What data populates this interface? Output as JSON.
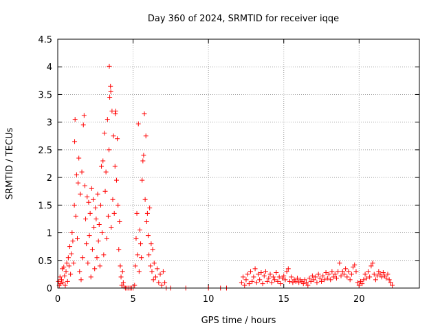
{
  "chart_data": {
    "type": "scatter",
    "title": "Day 360 of 2024, SRMTID for receiver iqqe",
    "xlabel": "GPS time / hours",
    "ylabel": "SRMTID / TECUs",
    "xlim": [
      0,
      24
    ],
    "ylim": [
      0,
      4.5
    ],
    "xticks": [
      0,
      5,
      10,
      15,
      20
    ],
    "xtick_labels": [
      "0",
      "5",
      "10",
      "15",
      "20"
    ],
    "yticks": [
      0,
      0.5,
      1,
      1.5,
      2,
      2.5,
      3,
      3.5,
      4,
      4.5
    ],
    "ytick_labels": [
      "0",
      "0.5",
      "1",
      "1.5",
      "2",
      "2.5",
      "3",
      "3.5",
      "4",
      "4.5"
    ],
    "grid": true,
    "marker": "plus",
    "color": "#ff0000",
    "series": [
      {
        "name": "SRMTID",
        "points": [
          [
            0.05,
            0.12
          ],
          [
            0.1,
            0.05
          ],
          [
            0.15,
            0.2
          ],
          [
            0.2,
            0.08
          ],
          [
            0.25,
            0.15
          ],
          [
            0.3,
            0.35
          ],
          [
            0.35,
            0.1
          ],
          [
            0.4,
            0.38
          ],
          [
            0.45,
            0.22
          ],
          [
            0.5,
            0.05
          ],
          [
            0.55,
            0.3
          ],
          [
            0.6,
            0.45
          ],
          [
            0.65,
            0.12
          ],
          [
            0.7,
            0.55
          ],
          [
            0.75,
            0.4
          ],
          [
            0.8,
            0.75
          ],
          [
            0.85,
            0.25
          ],
          [
            0.9,
            0.62
          ],
          [
            0.95,
            1.0
          ],
          [
            1.0,
            0.85
          ],
          [
            1.05,
            0.45
          ],
          [
            1.1,
            1.5
          ],
          [
            1.12,
            2.65
          ],
          [
            1.15,
            3.05
          ],
          [
            1.2,
            1.3
          ],
          [
            1.25,
            2.05
          ],
          [
            1.3,
            0.9
          ],
          [
            1.35,
            1.9
          ],
          [
            1.4,
            2.35
          ],
          [
            1.45,
            0.3
          ],
          [
            1.5,
            1.7
          ],
          [
            1.55,
            0.15
          ],
          [
            1.6,
            2.1
          ],
          [
            1.65,
            0.55
          ],
          [
            1.7,
            2.95
          ],
          [
            1.75,
            3.12
          ],
          [
            1.8,
            1.85
          ],
          [
            1.85,
            1.25
          ],
          [
            1.9,
            0.8
          ],
          [
            1.95,
            1.65
          ],
          [
            2.0,
            0.45
          ],
          [
            2.05,
            1.55
          ],
          [
            2.1,
            0.95
          ],
          [
            2.15,
            1.35
          ],
          [
            2.2,
            0.2
          ],
          [
            2.25,
            1.8
          ],
          [
            2.3,
            0.7
          ],
          [
            2.35,
            1.6
          ],
          [
            2.4,
            1.1
          ],
          [
            2.45,
            0.35
          ],
          [
            2.5,
            1.45
          ],
          [
            2.55,
            1.25
          ],
          [
            2.6,
            0.55
          ],
          [
            2.65,
            1.7
          ],
          [
            2.7,
            0.85
          ],
          [
            2.75,
            1.15
          ],
          [
            2.8,
            0.4
          ],
          [
            2.85,
            1.5
          ],
          [
            2.9,
            2.2
          ],
          [
            2.95,
            1.0
          ],
          [
            3.0,
            2.3
          ],
          [
            3.05,
            0.6
          ],
          [
            3.1,
            2.8
          ],
          [
            3.15,
            1.75
          ],
          [
            3.2,
            2.1
          ],
          [
            3.25,
            0.9
          ],
          [
            3.3,
            3.05
          ],
          [
            3.35,
            1.3
          ],
          [
            3.4,
            2.5
          ],
          [
            3.42,
            4.01
          ],
          [
            3.45,
            3.45
          ],
          [
            3.5,
            3.65
          ],
          [
            3.52,
            3.55
          ],
          [
            3.55,
            1.1
          ],
          [
            3.6,
            3.2
          ],
          [
            3.65,
            1.6
          ],
          [
            3.7,
            2.75
          ],
          [
            3.75,
            1.35
          ],
          [
            3.8,
            2.2
          ],
          [
            3.82,
            3.15
          ],
          [
            3.85,
            3.2
          ],
          [
            3.9,
            1.95
          ],
          [
            3.95,
            2.7
          ],
          [
            4.0,
            1.5
          ],
          [
            4.05,
            0.7
          ],
          [
            4.1,
            1.2
          ],
          [
            4.15,
            0.4
          ],
          [
            4.2,
            0.2
          ],
          [
            4.25,
            0.05
          ],
          [
            4.3,
            0.3
          ],
          [
            4.35,
            0.1
          ],
          [
            4.4,
            0.02
          ],
          [
            4.5,
            0.0
          ],
          [
            4.6,
            0.0
          ],
          [
            4.7,
            0.0
          ],
          [
            4.8,
            0.0
          ],
          [
            4.9,
            0.0
          ],
          [
            5.0,
            0.0
          ],
          [
            5.1,
            0.05
          ],
          [
            5.15,
            0.4
          ],
          [
            5.2,
            0.9
          ],
          [
            5.25,
            1.35
          ],
          [
            5.3,
            0.6
          ],
          [
            5.35,
            2.97
          ],
          [
            5.4,
            0.3
          ],
          [
            5.45,
            1.05
          ],
          [
            5.5,
            0.8
          ],
          [
            5.55,
            0.55
          ],
          [
            5.6,
            1.95
          ],
          [
            5.65,
            2.3
          ],
          [
            5.7,
            2.4
          ],
          [
            5.75,
            3.15
          ],
          [
            5.8,
            1.6
          ],
          [
            5.85,
            2.75
          ],
          [
            5.9,
            1.2
          ],
          [
            5.95,
            1.35
          ],
          [
            6.0,
            0.95
          ],
          [
            6.05,
            0.6
          ],
          [
            6.1,
            1.45
          ],
          [
            6.15,
            0.4
          ],
          [
            6.2,
            0.8
          ],
          [
            6.25,
            0.3
          ],
          [
            6.3,
            0.7
          ],
          [
            6.35,
            0.15
          ],
          [
            6.4,
            0.45
          ],
          [
            6.5,
            0.2
          ],
          [
            6.6,
            0.35
          ],
          [
            6.7,
            0.1
          ],
          [
            6.8,
            0.25
          ],
          [
            6.9,
            0.05
          ],
          [
            7.0,
            0.3
          ],
          [
            7.1,
            0.1
          ],
          [
            7.2,
            0.0
          ],
          [
            7.5,
            0.0
          ],
          [
            8.5,
            0.0
          ],
          [
            10.0,
            0.0
          ],
          [
            10.8,
            0.0
          ],
          [
            11.2,
            0.0
          ],
          [
            12.2,
            0.1
          ],
          [
            12.3,
            0.2
          ],
          [
            12.4,
            0.05
          ],
          [
            12.5,
            0.15
          ],
          [
            12.6,
            0.25
          ],
          [
            12.7,
            0.08
          ],
          [
            12.8,
            0.3
          ],
          [
            12.9,
            0.12
          ],
          [
            13.0,
            0.2
          ],
          [
            13.1,
            0.35
          ],
          [
            13.2,
            0.1
          ],
          [
            13.3,
            0.25
          ],
          [
            13.4,
            0.15
          ],
          [
            13.5,
            0.28
          ],
          [
            13.6,
            0.08
          ],
          [
            13.7,
            0.22
          ],
          [
            13.8,
            0.3
          ],
          [
            13.9,
            0.12
          ],
          [
            14.0,
            0.18
          ],
          [
            14.1,
            0.25
          ],
          [
            14.2,
            0.1
          ],
          [
            14.3,
            0.2
          ],
          [
            14.4,
            0.15
          ],
          [
            14.5,
            0.28
          ],
          [
            14.6,
            0.12
          ],
          [
            14.7,
            0.2
          ],
          [
            14.8,
            0.08
          ],
          [
            14.9,
            0.18
          ],
          [
            15.0,
            0.22
          ],
          [
            15.1,
            0.15
          ],
          [
            15.2,
            0.3
          ],
          [
            15.3,
            0.35
          ],
          [
            15.4,
            0.12
          ],
          [
            15.5,
            0.2
          ],
          [
            15.6,
            0.1
          ],
          [
            15.7,
            0.15
          ],
          [
            15.8,
            0.12
          ],
          [
            15.9,
            0.18
          ],
          [
            16.0,
            0.1
          ],
          [
            16.1,
            0.15
          ],
          [
            16.2,
            0.12
          ],
          [
            16.3,
            0.08
          ],
          [
            16.4,
            0.15
          ],
          [
            16.5,
            0.1
          ],
          [
            16.6,
            0.05
          ],
          [
            16.7,
            0.18
          ],
          [
            16.8,
            0.12
          ],
          [
            16.9,
            0.22
          ],
          [
            17.0,
            0.15
          ],
          [
            17.1,
            0.2
          ],
          [
            17.2,
            0.1
          ],
          [
            17.3,
            0.25
          ],
          [
            17.4,
            0.18
          ],
          [
            17.5,
            0.12
          ],
          [
            17.6,
            0.22
          ],
          [
            17.7,
            0.15
          ],
          [
            17.8,
            0.28
          ],
          [
            17.9,
            0.18
          ],
          [
            18.0,
            0.25
          ],
          [
            18.1,
            0.15
          ],
          [
            18.2,
            0.3
          ],
          [
            18.3,
            0.2
          ],
          [
            18.4,
            0.25
          ],
          [
            18.5,
            0.18
          ],
          [
            18.6,
            0.3
          ],
          [
            18.7,
            0.45
          ],
          [
            18.8,
            0.22
          ],
          [
            18.9,
            0.3
          ],
          [
            19.0,
            0.25
          ],
          [
            19.1,
            0.35
          ],
          [
            19.2,
            0.2
          ],
          [
            19.3,
            0.3
          ],
          [
            19.4,
            0.15
          ],
          [
            19.5,
            0.25
          ],
          [
            19.6,
            0.38
          ],
          [
            19.7,
            0.42
          ],
          [
            19.8,
            0.3
          ],
          [
            19.9,
            0.1
          ],
          [
            20.0,
            0.05
          ],
          [
            20.1,
            0.12
          ],
          [
            20.2,
            0.08
          ],
          [
            20.3,
            0.15
          ],
          [
            20.4,
            0.25
          ],
          [
            20.5,
            0.18
          ],
          [
            20.6,
            0.3
          ],
          [
            20.7,
            0.2
          ],
          [
            20.8,
            0.4
          ],
          [
            20.9,
            0.45
          ],
          [
            21.0,
            0.25
          ],
          [
            21.1,
            0.15
          ],
          [
            21.2,
            0.22
          ],
          [
            21.3,
            0.3
          ],
          [
            21.4,
            0.25
          ],
          [
            21.5,
            0.2
          ],
          [
            21.6,
            0.28
          ],
          [
            21.7,
            0.22
          ],
          [
            21.8,
            0.18
          ],
          [
            21.9,
            0.25
          ],
          [
            22.0,
            0.15
          ],
          [
            22.1,
            0.1
          ],
          [
            22.2,
            0.05
          ]
        ]
      }
    ]
  }
}
